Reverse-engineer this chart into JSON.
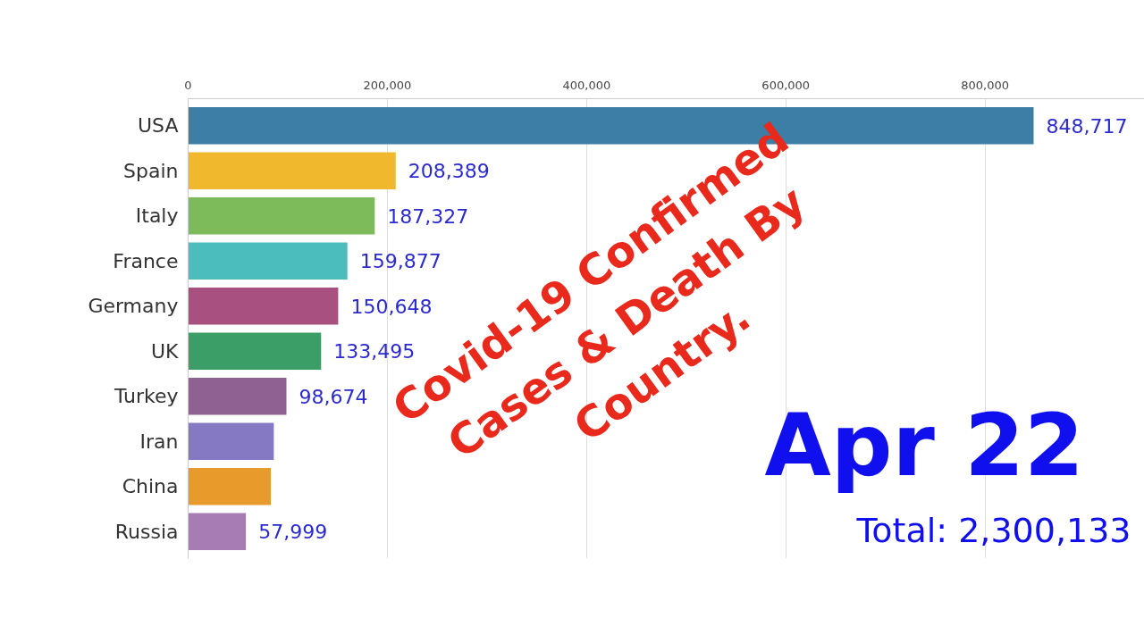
{
  "chart_data": {
    "type": "bar",
    "orientation": "horizontal",
    "title": "Covid-19 Confirmed\nCases & Death By\nCountry.",
    "categories": [
      "USA",
      "Spain",
      "Italy",
      "France",
      "Germany",
      "UK",
      "Turkey",
      "Iran",
      "China",
      "Russia"
    ],
    "values": [
      848717,
      208389,
      187327,
      159877,
      150648,
      133495,
      98674,
      86000,
      83000,
      57999
    ],
    "value_labels": [
      "848,717",
      "208,389",
      "187,327",
      "159,877",
      "150,648",
      "133,495",
      "98,674",
      null,
      null,
      "57,999"
    ],
    "colors": [
      "#3d7ea6",
      "#f0b92d",
      "#7dba5a",
      "#4bbdbd",
      "#a8507f",
      "#3b9e67",
      "#8e6192",
      "#8579c4",
      "#e89a2a",
      "#a77bb4"
    ],
    "xlim": [
      0,
      960000
    ],
    "xticks": [
      0,
      {
        "value": 200000,
        "label": "200,000"
      },
      {
        "value": 400000,
        "label": "400,000"
      },
      {
        "value": 600000,
        "label": "600,000"
      },
      {
        "value": 800000,
        "label": "800,000"
      }
    ],
    "grid": "x",
    "annotations": [
      "Apr 22",
      "Total: 2,300,133"
    ]
  }
}
